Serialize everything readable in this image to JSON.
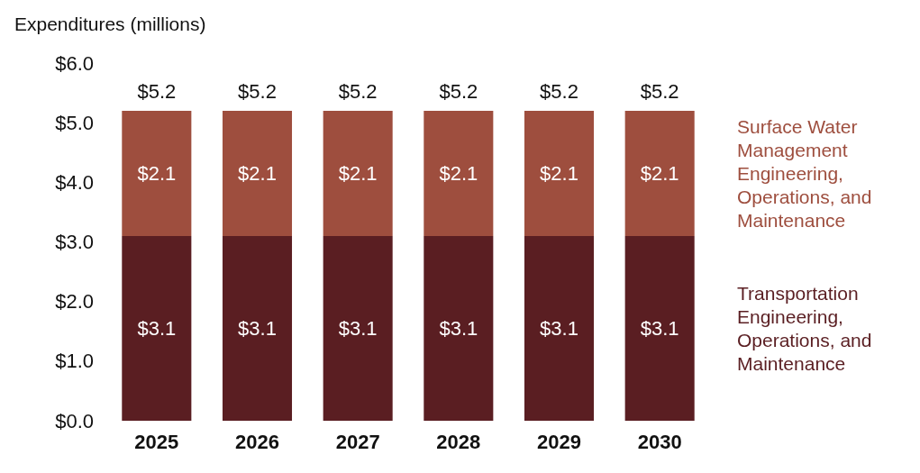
{
  "chart_data": {
    "type": "bar",
    "stacked": true,
    "ylabel": "Expenditures (millions)",
    "categories": [
      "2025",
      "2026",
      "2027",
      "2028",
      "2029",
      "2030"
    ],
    "series": [
      {
        "name": "Transportation Engineering, Operations, and Maintenance",
        "color": "#5a1e22",
        "values": [
          3.1,
          3.1,
          3.1,
          3.1,
          3.1,
          3.1
        ],
        "value_labels": [
          "$3.1",
          "$3.1",
          "$3.1",
          "$3.1",
          "$3.1",
          "$3.1"
        ]
      },
      {
        "name": "Surface Water Management Engineering, Operations, and Maintenance",
        "color": "#9e4e3e",
        "values": [
          2.1,
          2.1,
          2.1,
          2.1,
          2.1,
          2.1
        ],
        "value_labels": [
          "$2.1",
          "$2.1",
          "$2.1",
          "$2.1",
          "$2.1",
          "$2.1"
        ]
      }
    ],
    "totals": [
      "$5.2",
      "$5.2",
      "$5.2",
      "$5.2",
      "$5.2",
      "$5.2"
    ],
    "ylim": [
      0,
      6
    ],
    "yticks": [
      {
        "value": 0,
        "label": "$0.0"
      },
      {
        "value": 1,
        "label": "$1.0"
      },
      {
        "value": 2,
        "label": "$2.0"
      },
      {
        "value": 3,
        "label": "$3.0"
      },
      {
        "value": 4,
        "label": "$4.0"
      },
      {
        "value": 5,
        "label": "$5.0"
      },
      {
        "value": 6,
        "label": "$6.0"
      }
    ],
    "grid": false,
    "legend": "right"
  }
}
